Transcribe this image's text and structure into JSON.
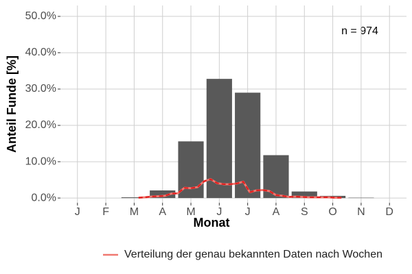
{
  "chart_data": {
    "type": "bar",
    "x_label": "Monat",
    "y_label": "Anteil Funde [%]",
    "annotation": "n = 974",
    "categories": [
      "J",
      "F",
      "M",
      "A",
      "M",
      "J",
      "J",
      "A",
      "S",
      "O",
      "N",
      "D"
    ],
    "values": [
      0,
      0,
      0.2,
      2.1,
      15.6,
      32.8,
      29.0,
      11.8,
      1.8,
      0.6,
      0.1,
      0
    ],
    "color": "#595959",
    "line": {
      "name": "Verteilung der genau bekannten Daten nach Wochen",
      "color": "#f07870",
      "dash_color": "#e01e1e",
      "values": [
        null,
        null,
        null,
        null,
        null,
        null,
        null,
        null,
        null,
        null,
        null,
        0.1,
        0.2,
        0.4,
        0.5,
        0.6,
        1.2,
        1.3,
        2.8,
        2.7,
        3.0,
        4.6,
        5.2,
        4.1,
        3.8,
        3.8,
        4.0,
        4.5,
        1.6,
        2.1,
        2.2,
        1.9,
        0.8,
        0.6,
        0.3,
        0.4,
        0.3,
        0.2,
        0.2,
        0.2,
        0.2,
        0.1,
        0.1,
        null,
        null,
        null,
        null,
        null,
        null,
        null,
        null,
        null
      ]
    },
    "ylim": [
      -1.3,
      53
    ],
    "yticks": [
      {
        "value": 0,
        "label": "0.0%"
      },
      {
        "value": 10,
        "label": "10.0%"
      },
      {
        "value": 20,
        "label": "20.0%"
      },
      {
        "value": 30,
        "label": "30.0%"
      },
      {
        "value": 40,
        "label": "40.0%"
      },
      {
        "value": 50,
        "label": "50.0%"
      }
    ],
    "grid": true
  }
}
